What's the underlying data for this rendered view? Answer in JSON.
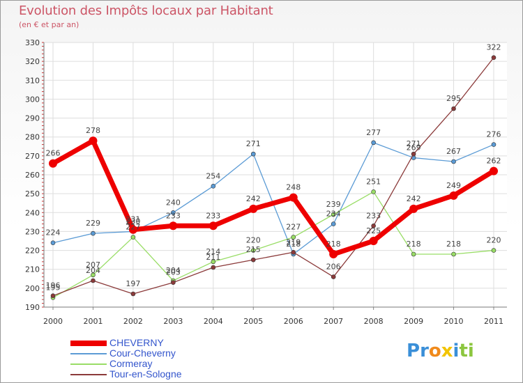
{
  "chart_data": {
    "type": "line",
    "title": "Evolution des Impôts locaux par Habitant",
    "subtitle": "(en € et par an)",
    "xlabel": "",
    "ylabel": "",
    "x": [
      "2000",
      "2001",
      "2002",
      "2003",
      "2004",
      "2005",
      "2006",
      "2007",
      "2008",
      "2009",
      "2010",
      "2011"
    ],
    "ylim": [
      190,
      330
    ],
    "yticks": [
      190,
      200,
      210,
      220,
      230,
      240,
      250,
      260,
      270,
      280,
      290,
      300,
      310,
      320,
      330
    ],
    "grid": true,
    "legend_position": "bottom-left",
    "series": [
      {
        "name": "CHEVERNY",
        "color": "#ee0000",
        "emphasis": true,
        "values": [
          266,
          278,
          231,
          233,
          233,
          242,
          248,
          218,
          225,
          242,
          249,
          262
        ],
        "labels": [
          "266",
          "278",
          "231",
          "233",
          "233",
          "242",
          "248",
          "218",
          "225",
          "242",
          "249",
          "262"
        ]
      },
      {
        "name": "Cour-Cheverny",
        "color": "#5b9bd5",
        "emphasis": false,
        "values": [
          224,
          229,
          230,
          240,
          254,
          271,
          218,
          234,
          277,
          269,
          267,
          276
        ],
        "labels": [
          "224",
          "229",
          "230",
          "240",
          "254",
          "271",
          "218",
          "234",
          "277",
          "269",
          "267",
          "276"
        ]
      },
      {
        "name": "Cormeray",
        "color": "#99dd66",
        "emphasis": false,
        "values": [
          195,
          207,
          227,
          204,
          214,
          220,
          227,
          239,
          251,
          218,
          218,
          220
        ],
        "labels": [
          "195",
          "207",
          "227",
          "204",
          "214",
          "220",
          "227",
          "239",
          "251",
          "218",
          "218",
          "220"
        ]
      },
      {
        "name": "Tour-en-Sologne",
        "color": "#8b3a3a",
        "emphasis": false,
        "values": [
          196,
          204,
          197,
          203,
          211,
          215,
          219,
          206,
          233,
          271,
          295,
          322
        ],
        "labels": [
          "196",
          "204",
          "197",
          "203",
          "211",
          "215",
          "219",
          "206",
          "233",
          "271",
          "295",
          "322"
        ]
      }
    ]
  },
  "brand": {
    "letters": [
      "P",
      "r",
      "o",
      "x",
      "i",
      "t",
      "i"
    ],
    "colors": [
      "#3a8fd8",
      "#3a8fd8",
      "#f08a1c",
      "#f2c400",
      "#3a8fd8",
      "#8cc63f",
      "#8cc63f"
    ]
  }
}
